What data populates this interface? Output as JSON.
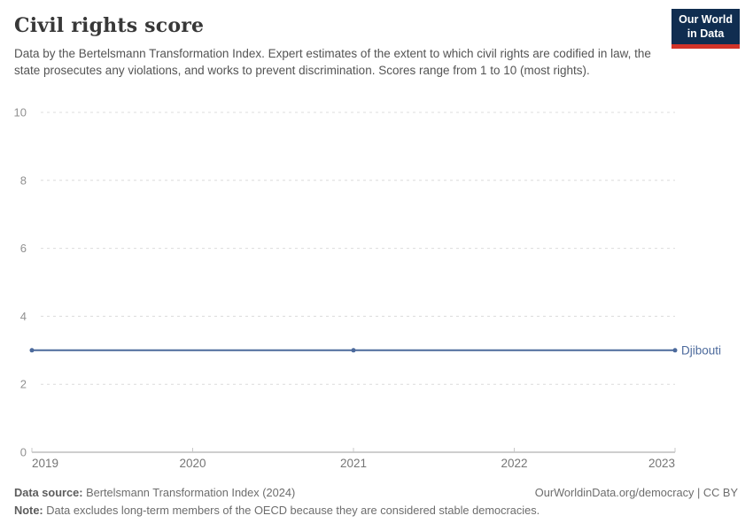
{
  "header": {
    "title": "Civil rights score",
    "subtitle": "Data by the Bertelsmann Transformation Index. Expert estimates of the extent to which civil rights are codified in law, the state prosecutes any violations, and works to prevent discrimination. Scores range from 1 to 10 (most rights)."
  },
  "logo": {
    "line1": "Our World",
    "line2": "in Data",
    "bg_color": "#102d50",
    "bar_color": "#d13328"
  },
  "chart_data": {
    "type": "line",
    "title": "Civil rights score",
    "xlabel": "",
    "ylabel": "",
    "xlim": [
      2019,
      2023
    ],
    "ylim": [
      0,
      10
    ],
    "x_ticks": [
      2019,
      2020,
      2021,
      2022,
      2023
    ],
    "y_ticks": [
      0,
      2,
      4,
      6,
      8,
      10
    ],
    "grid": "horizontal-dashed",
    "legend_position": "right-of-line-end",
    "series": [
      {
        "name": "Djibouti",
        "x": [
          2019,
          2021,
          2023
        ],
        "values": [
          3,
          3,
          3
        ],
        "color": "#4c6a9c"
      }
    ],
    "colors": {
      "gridline": "#dcdcdc",
      "axis_line": "#9e9e9e",
      "tick_mark": "#c8c8c8",
      "y_tick_label": "#919191",
      "x_tick_label": "#757575"
    }
  },
  "footer": {
    "source_label": "Data source:",
    "source_rest": " Bertelsmann Transformation Index (2024)",
    "right_text": "OurWorldinData.org/democracy | CC BY",
    "note_label": "Note:",
    "note_rest": " Data excludes long-term members of the OECD because they are considered stable democracies."
  }
}
